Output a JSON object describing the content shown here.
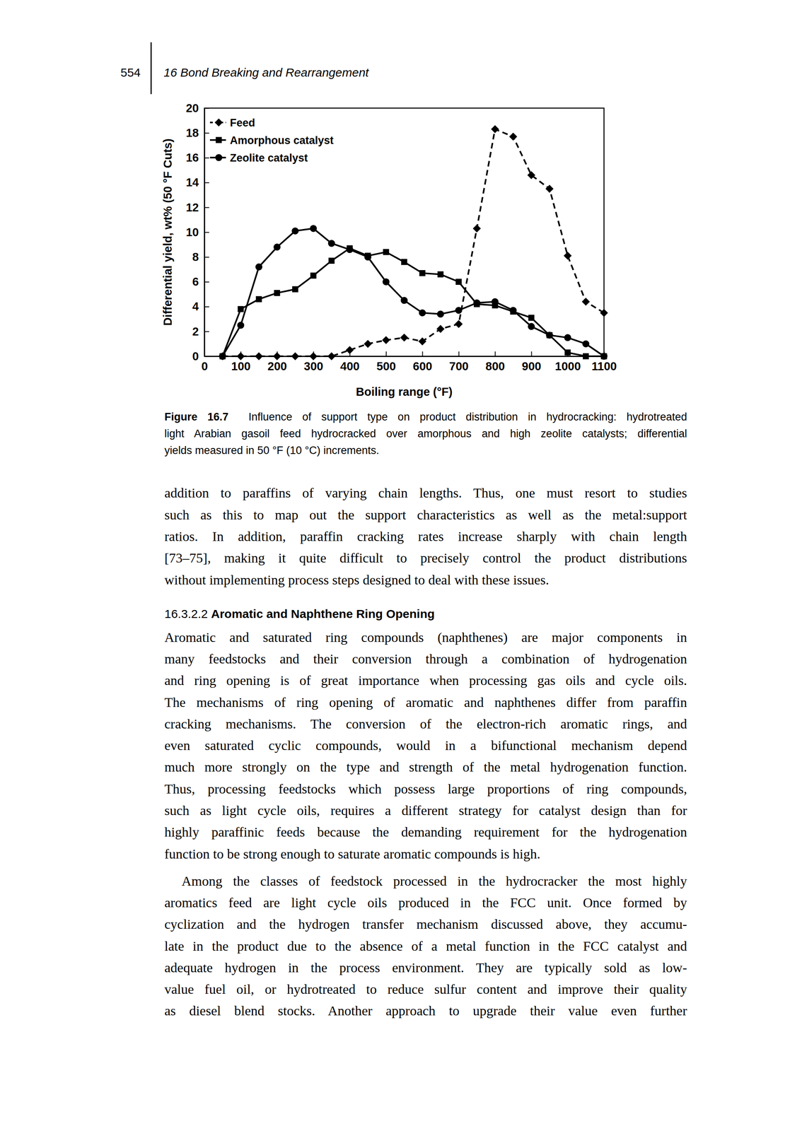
{
  "header": {
    "page_number": "554",
    "running_title": "16 Bond Breaking and Rearrangement"
  },
  "chart_data": {
    "type": "line",
    "x_label": "Boiling range (°F)",
    "y_label": "Differential yield, wt% (50 °F Cuts)",
    "x": [
      50,
      100,
      150,
      200,
      250,
      300,
      350,
      400,
      450,
      500,
      550,
      600,
      650,
      700,
      750,
      800,
      850,
      900,
      950,
      1000,
      1050,
      1100
    ],
    "series": [
      {
        "name": "Feed",
        "color": "#000000",
        "marker": "diamond",
        "line_style": "dashed",
        "values": [
          0,
          0,
          0,
          0,
          0,
          0,
          0,
          0.5,
          1.0,
          1.3,
          1.5,
          1.2,
          2.2,
          2.6,
          10.3,
          18.3,
          17.7,
          14.6,
          13.5,
          8.1,
          4.4,
          3.5
        ]
      },
      {
        "name": "Amorphous catalyst",
        "color": "#000000",
        "marker": "square",
        "line_style": "solid",
        "values": [
          0,
          3.8,
          4.6,
          5.1,
          5.4,
          6.5,
          7.7,
          8.7,
          8.1,
          8.4,
          7.6,
          6.7,
          6.6,
          6.0,
          4.2,
          4.1,
          3.6,
          3.1,
          1.7,
          0.3,
          0,
          0
        ]
      },
      {
        "name": "Zeolite catalyst",
        "color": "#000000",
        "marker": "circle",
        "line_style": "solid",
        "values": [
          0,
          2.5,
          7.2,
          8.8,
          10.1,
          10.3,
          9.1,
          8.6,
          8.0,
          6.0,
          4.5,
          3.5,
          3.4,
          3.7,
          4.3,
          4.4,
          3.7,
          2.4,
          1.7,
          1.5,
          1.0,
          0
        ]
      }
    ],
    "xlim": [
      0,
      1100
    ],
    "ylim": [
      0,
      20
    ],
    "xticks": [
      0,
      100,
      200,
      300,
      400,
      500,
      600,
      700,
      800,
      900,
      1000,
      1100
    ],
    "yticks": [
      0,
      2,
      4,
      6,
      8,
      10,
      12,
      14,
      16,
      18,
      20
    ],
    "legend": "upper left",
    "grid": false
  },
  "caption": {
    "label": "Figure 16.7",
    "lines": [
      "Influence of support type on product distribution in hydrocracking: hydrotreated",
      "light Arabian gasoil feed hydrocracked over amorphous and high zeolite catalysts; differential",
      "yields measured in 50 °F (10 °C) increments."
    ]
  },
  "body": [
    {
      "type": "paragraph",
      "lines": [
        "addition to paraffins of varying chain lengths. Thus, one must resort to studies",
        "such as this to map out the support characteristics as well as the metal:support",
        "ratios. In addition, paraffin cracking rates increase sharply with chain length",
        "[73–75], making it quite difficult to precisely control the product distributions",
        "without implementing process steps designed to deal with these issues."
      ]
    },
    {
      "type": "heading",
      "number": "16.3.2.2",
      "title": "Aromatic and Naphthene Ring Opening"
    },
    {
      "type": "paragraph",
      "lines": [
        "Aromatic and saturated ring compounds (naphthenes) are major components in",
        "many feedstocks and their conversion through a combination of hydrogenation",
        "and ring opening is of great importance when processing gas oils and cycle oils.",
        "The mechanisms of ring opening of aromatic and naphthenes differ from paraffin",
        "cracking mechanisms. The conversion of the electron-rich aromatic rings, and",
        "even saturated cyclic compounds, would in a bifunctional mechanism depend",
        "much more strongly on the type and strength of the metal hydrogenation function.",
        "Thus, processing feedstocks which possess large proportions of ring compounds,",
        "such as light cycle oils, requires a different strategy for catalyst design than for",
        "highly paraffinic feeds because the demanding requirement for the hydrogenation",
        "function to be strong enough to saturate aromatic compounds is high."
      ]
    },
    {
      "type": "paragraph",
      "lines": [
        "Among the classes of feedstock processed in the hydrocracker the most highly",
        "aromatics feed are light cycle oils produced in the FCC unit. Once formed by",
        "cyclization and the hydrogen transfer mechanism discussed above, they accumu-",
        "late in the product due to the absence of a metal function in the FCC catalyst and",
        "adequate hydrogen in the process environment. They are typically sold as low-",
        "value fuel oil, or hydrotreated to reduce sulfur content and improve their quality",
        "as diesel blend stocks. Another approach to upgrade their value even further"
      ]
    }
  ]
}
